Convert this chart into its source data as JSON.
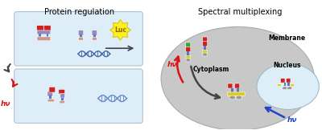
{
  "title_left": "Protein regulation",
  "title_right": "Spectral multiplexing",
  "bg_color": "#ffffff",
  "box_color": "#ddeef8",
  "ellipse_color": "#c8c8c8",
  "nucleus_color": "#ddeef8",
  "membrane_label": "Membrane",
  "cytoplasm_label": "Cytoplasm",
  "nucleus_label": "Nucleus",
  "luc_label": "Luc",
  "hv_color": "#dd1111",
  "hv_blue_color": "#2244cc",
  "arrow_dark": "#444444",
  "red_color": "#cc2222",
  "red2_color": "#aa1111",
  "blue_color": "#5577cc",
  "purple_color": "#9988bb",
  "peach_color": "#cc9988",
  "green_color": "#33aa33",
  "yellow_color": "#ddcc11",
  "gray_color": "#999999",
  "luc_yellow": "#ffee22",
  "luc_text": "#886600"
}
